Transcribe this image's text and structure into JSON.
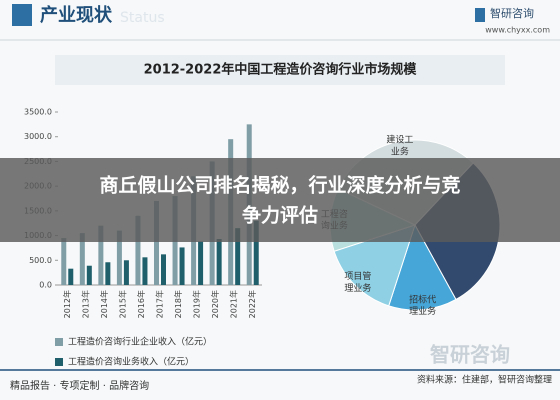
{
  "header": {
    "title": "产业现状",
    "watermark": "Status",
    "brand": "智研咨询",
    "url": "www.chyxx.com"
  },
  "banner": {
    "lines": [
      "商丘假山公司排名揭秘，行业深度分析与竞",
      "争力评估"
    ]
  },
  "footer": {
    "left": "精品报告 · 专项定制 · 品牌咨询",
    "right": "资料来源：住建部，智研咨询整理",
    "watermark": "智研咨询"
  },
  "chart_title": "2012-2022年中国工程造价咨询行业市场规模",
  "chart_data": [
    {
      "type": "bar",
      "categories": [
        "2012年",
        "2013年",
        "2014年",
        "2015年",
        "2016年",
        "2017年",
        "2018年",
        "2019年",
        "2020年",
        "2021年",
        "2022年"
      ],
      "series": [
        {
          "name": "工程造价咨询行业企业收入（亿元）",
          "color": "#7f9ea6",
          "values": [
            950,
            1050,
            1200,
            1100,
            1400,
            1700,
            1800,
            2200,
            2500,
            2950,
            3250
          ]
        },
        {
          "name": "工程造价咨询业务收入（亿元）",
          "color": "#1f5f6b",
          "values": [
            330,
            390,
            460,
            500,
            560,
            620,
            760,
            880,
            930,
            1150,
            1300
          ]
        }
      ],
      "ylim": [
        0,
        3500
      ],
      "yticks": [
        {
          "value": 0,
          "label": "0.0"
        },
        {
          "value": 500,
          "label": "500.0"
        },
        {
          "value": 1000,
          "label": "1000.0"
        },
        {
          "value": 1500,
          "label": "1500.0"
        },
        {
          "value": 2000,
          "label": "2000.0"
        },
        {
          "value": 2500,
          "label": "2500.0"
        },
        {
          "value": 3000,
          "label": "3000.0"
        },
        {
          "value": 3500,
          "label": "3500.0"
        }
      ]
    },
    {
      "type": "pie",
      "categories": [
        "建设工\n业务",
        null,
        "招标代\n理业务",
        "项目管\n理业务",
        "工程咨\n询业务"
      ],
      "values": [
        30,
        30,
        13,
        15,
        12
      ],
      "colors": [
        "#d3dcdf",
        "#324a6e",
        "#46a6d8",
        "#8fd0e4",
        "#b9e0de"
      ]
    }
  ]
}
